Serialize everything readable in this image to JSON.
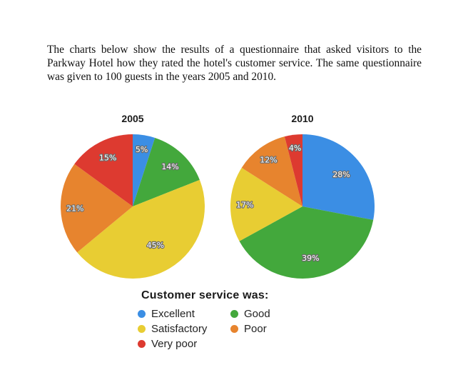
{
  "prompt": "The charts below show the results of a questionnaire that asked visitors to the Parkway Hotel how they rated the hotel's customer service. The same questionnaire was given to 100 guests in the years 2005 and 2010.",
  "chart_data": [
    {
      "type": "pie",
      "title": "2005",
      "categories": [
        "Excellent",
        "Good",
        "Satisfactory",
        "Poor",
        "Very poor"
      ],
      "values": [
        5,
        14,
        45,
        21,
        15
      ],
      "labels": [
        "5%",
        "14%",
        "45%",
        "21%",
        "15%"
      ]
    },
    {
      "type": "pie",
      "title": "2010",
      "categories": [
        "Excellent",
        "Good",
        "Satisfactory",
        "Poor",
        "Very poor"
      ],
      "values": [
        28,
        39,
        17,
        12,
        4
      ],
      "labels": [
        "28%",
        "39%",
        "17%",
        "12%",
        "4%"
      ]
    }
  ],
  "legend": {
    "title": "Customer service was:",
    "items": [
      {
        "label": "Excellent",
        "color": "#3b8ee4"
      },
      {
        "label": "Good",
        "color": "#43a83c"
      },
      {
        "label": "Satisfactory",
        "color": "#e8cd33"
      },
      {
        "label": "Poor",
        "color": "#e7842e"
      },
      {
        "label": "Very poor",
        "color": "#dd3a30"
      }
    ]
  },
  "colors": {
    "Excellent": "#3b8ee4",
    "Good": "#43a83c",
    "Satisfactory": "#e8cd33",
    "Poor": "#e7842e",
    "Very poor": "#dd3a30"
  }
}
